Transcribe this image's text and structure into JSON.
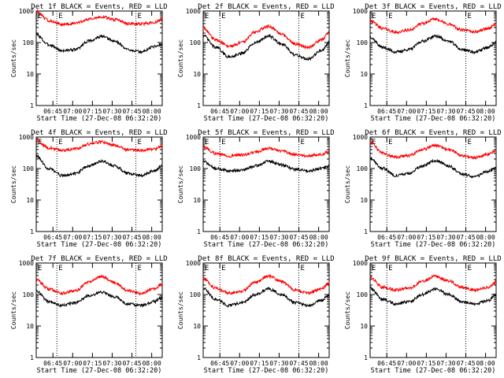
{
  "axis_common": {
    "ylabel": "Counts/sec",
    "xlabel": "Start Time (27-Dec-08 06:32:20)",
    "yticks": [
      "1",
      "10",
      "100",
      "1000"
    ],
    "xticks": [
      "06:45",
      "07:00",
      "07:15",
      "07:30",
      "07:45",
      "08:00"
    ],
    "marker": "E",
    "colors": {
      "events": "#000000",
      "lld": "#ff0000"
    }
  },
  "chart_data": [
    {
      "type": "line",
      "title": "Det 1f BLACK = Events, RED = LLD",
      "yscale": "log",
      "ylim": [
        1,
        1000
      ],
      "xlim": [
        "06:32:20",
        "08:08"
      ],
      "event_lines": [
        "06:48",
        "07:48"
      ],
      "series": [
        {
          "name": "BLACK = Events",
          "color": "#000000",
          "x": [
            "06:32",
            "06:42",
            "06:52",
            "07:02",
            "07:12",
            "07:22",
            "07:32",
            "07:42",
            "07:52",
            "08:02",
            "08:08"
          ],
          "values": [
            180,
            85,
            55,
            60,
            110,
            155,
            110,
            60,
            50,
            75,
            90
          ]
        },
        {
          "name": "RED = LLD",
          "color": "#ff0000",
          "x": [
            "06:32",
            "06:42",
            "06:52",
            "07:02",
            "07:12",
            "07:22",
            "07:32",
            "07:42",
            "07:52",
            "08:02",
            "08:08"
          ],
          "values": [
            1000,
            500,
            380,
            400,
            550,
            650,
            530,
            400,
            390,
            430,
            550
          ]
        }
      ]
    },
    {
      "type": "line",
      "title": "Det 2f BLACK = Events, RED = LLD",
      "yscale": "log",
      "ylim": [
        1,
        1000
      ],
      "xlim": [
        "06:32:20",
        "08:08"
      ],
      "event_lines": [
        "06:45",
        "07:45"
      ],
      "series": [
        {
          "name": "BLACK = Events",
          "color": "#000000",
          "x": [
            "06:32",
            "06:42",
            "06:52",
            "07:02",
            "07:12",
            "07:22",
            "07:32",
            "07:42",
            "07:52",
            "08:02",
            "08:08"
          ],
          "values": [
            170,
            70,
            35,
            45,
            100,
            160,
            90,
            40,
            30,
            55,
            100
          ]
        },
        {
          "name": "RED = LLD",
          "color": "#ff0000",
          "x": [
            "06:32",
            "06:42",
            "06:52",
            "07:02",
            "07:12",
            "07:22",
            "07:32",
            "07:42",
            "07:52",
            "08:02",
            "08:08"
          ],
          "values": [
            300,
            120,
            75,
            100,
            220,
            330,
            190,
            90,
            70,
            120,
            210
          ]
        }
      ]
    },
    {
      "type": "line",
      "title": "Det 3f BLACK = Events, RED = LLD",
      "yscale": "log",
      "ylim": [
        1,
        1000
      ],
      "xlim": [
        "06:32:20",
        "08:08"
      ],
      "event_lines": [
        "06:45",
        "07:45"
      ],
      "series": [
        {
          "name": "BLACK = Events",
          "color": "#000000",
          "x": [
            "06:32",
            "06:42",
            "06:52",
            "07:02",
            "07:12",
            "07:22",
            "07:32",
            "07:42",
            "07:52",
            "08:02",
            "08:08"
          ],
          "values": [
            150,
            70,
            50,
            60,
            110,
            160,
            110,
            60,
            50,
            70,
            100
          ]
        },
        {
          "name": "RED = LLD",
          "color": "#ff0000",
          "x": [
            "06:32",
            "06:42",
            "06:52",
            "07:02",
            "07:12",
            "07:22",
            "07:32",
            "07:42",
            "07:52",
            "08:02",
            "08:08"
          ],
          "values": [
            500,
            280,
            210,
            250,
            400,
            560,
            380,
            250,
            220,
            280,
            380
          ]
        }
      ]
    },
    {
      "type": "line",
      "title": "Det 4f BLACK = Events, RED = LLD",
      "yscale": "log",
      "ylim": [
        1,
        1000
      ],
      "xlim": [
        "06:32:20",
        "08:08"
      ],
      "event_lines": [
        "06:48",
        "07:48"
      ],
      "series": [
        {
          "name": "BLACK = Events",
          "color": "#000000",
          "x": [
            "06:32",
            "06:42",
            "06:52",
            "07:02",
            "07:12",
            "07:22",
            "07:32",
            "07:42",
            "07:52",
            "08:02",
            "08:08"
          ],
          "values": [
            250,
            100,
            60,
            70,
            120,
            170,
            120,
            70,
            60,
            85,
            120
          ]
        },
        {
          "name": "RED = LLD",
          "color": "#ff0000",
          "x": [
            "06:32",
            "06:42",
            "06:52",
            "07:02",
            "07:12",
            "07:22",
            "07:32",
            "07:42",
            "07:52",
            "08:02",
            "08:08"
          ],
          "values": [
            800,
            450,
            380,
            420,
            600,
            700,
            550,
            400,
            380,
            420,
            520
          ]
        }
      ]
    },
    {
      "type": "line",
      "title": "Det 5f BLACK = Events, RED = LLD",
      "yscale": "log",
      "ylim": [
        1,
        1000
      ],
      "xlim": [
        "06:32:20",
        "08:08"
      ],
      "event_lines": [
        "06:45",
        "07:45"
      ],
      "series": [
        {
          "name": "BLACK = Events",
          "color": "#000000",
          "x": [
            "06:32",
            "06:42",
            "06:52",
            "07:02",
            "07:12",
            "07:22",
            "07:32",
            "07:42",
            "07:52",
            "08:02",
            "08:08"
          ],
          "values": [
            170,
            100,
            85,
            90,
            120,
            170,
            130,
            95,
            85,
            100,
            120
          ]
        },
        {
          "name": "RED = LLD",
          "color": "#ff0000",
          "x": [
            "06:32",
            "06:42",
            "06:52",
            "07:02",
            "07:12",
            "07:22",
            "07:32",
            "07:42",
            "07:52",
            "08:02",
            "08:08"
          ],
          "values": [
            500,
            300,
            250,
            270,
            330,
            440,
            360,
            280,
            250,
            280,
            350
          ]
        }
      ]
    },
    {
      "type": "line",
      "title": "Det 6f BLACK = Events, RED = LLD",
      "yscale": "log",
      "ylim": [
        1,
        1000
      ],
      "xlim": [
        "06:32:20",
        "08:08"
      ],
      "event_lines": [
        "06:45",
        "07:45"
      ],
      "series": [
        {
          "name": "BLACK = Events",
          "color": "#000000",
          "x": [
            "06:32",
            "06:42",
            "06:52",
            "07:02",
            "07:12",
            "07:22",
            "07:32",
            "07:42",
            "07:52",
            "08:02",
            "08:08"
          ],
          "values": [
            220,
            100,
            60,
            70,
            120,
            180,
            120,
            65,
            55,
            80,
            110
          ]
        },
        {
          "name": "RED = LLD",
          "color": "#ff0000",
          "x": [
            "06:32",
            "06:42",
            "06:52",
            "07:02",
            "07:12",
            "07:22",
            "07:32",
            "07:42",
            "07:52",
            "08:02",
            "08:08"
          ],
          "values": [
            700,
            300,
            230,
            260,
            400,
            550,
            400,
            260,
            220,
            280,
            380
          ]
        }
      ]
    },
    {
      "type": "line",
      "title": "Det 7f BLACK = Events, RED = LLD",
      "yscale": "log",
      "ylim": [
        1,
        1000
      ],
      "xlim": [
        "06:32:20",
        "08:08"
      ],
      "event_lines": [
        "06:48",
        "07:48"
      ],
      "series": [
        {
          "name": "BLACK = Events",
          "color": "#000000",
          "x": [
            "06:32",
            "06:42",
            "06:52",
            "07:02",
            "07:12",
            "07:22",
            "07:32",
            "07:42",
            "07:52",
            "08:02",
            "08:08"
          ],
          "values": [
            130,
            60,
            45,
            55,
            90,
            120,
            85,
            50,
            45,
            60,
            80
          ]
        },
        {
          "name": "RED = LLD",
          "color": "#ff0000",
          "x": [
            "06:32",
            "06:42",
            "06:52",
            "07:02",
            "07:12",
            "07:22",
            "07:32",
            "07:42",
            "07:52",
            "08:02",
            "08:08"
          ],
          "values": [
            300,
            150,
            110,
            130,
            250,
            380,
            240,
            130,
            110,
            150,
            210
          ]
        }
      ]
    },
    {
      "type": "line",
      "title": "Det 8f BLACK = Events, RED = LLD",
      "yscale": "log",
      "ylim": [
        1,
        1000
      ],
      "xlim": [
        "06:32:20",
        "08:08"
      ],
      "event_lines": [
        "06:45",
        "07:45"
      ],
      "series": [
        {
          "name": "BLACK = Events",
          "color": "#000000",
          "x": [
            "06:32",
            "06:42",
            "06:52",
            "07:02",
            "07:12",
            "07:22",
            "07:32",
            "07:42",
            "07:52",
            "08:02",
            "08:08"
          ],
          "values": [
            160,
            70,
            45,
            55,
            100,
            150,
            100,
            55,
            45,
            65,
            95
          ]
        },
        {
          "name": "RED = LLD",
          "color": "#ff0000",
          "x": [
            "06:32",
            "06:42",
            "06:52",
            "07:02",
            "07:12",
            "07:22",
            "07:32",
            "07:42",
            "07:52",
            "08:02",
            "08:08"
          ],
          "values": [
            330,
            160,
            110,
            130,
            250,
            380,
            260,
            140,
            110,
            150,
            230
          ]
        }
      ]
    },
    {
      "type": "line",
      "title": "Det 9f BLACK = Events, RED = LLD",
      "yscale": "log",
      "ylim": [
        1,
        1000
      ],
      "xlim": [
        "06:32:20",
        "08:08"
      ],
      "event_lines": [
        "06:45",
        "07:45"
      ],
      "series": [
        {
          "name": "BLACK = Events",
          "color": "#000000",
          "x": [
            "06:32",
            "06:42",
            "06:52",
            "07:02",
            "07:12",
            "07:22",
            "07:32",
            "07:42",
            "07:52",
            "08:02",
            "08:08"
          ],
          "values": [
            160,
            70,
            50,
            60,
            100,
            150,
            100,
            60,
            50,
            65,
            100
          ]
        },
        {
          "name": "RED = LLD",
          "color": "#ff0000",
          "x": [
            "06:32",
            "06:42",
            "06:52",
            "07:02",
            "07:12",
            "07:22",
            "07:32",
            "07:42",
            "07:52",
            "08:02",
            "08:08"
          ],
          "values": [
            350,
            170,
            140,
            160,
            260,
            380,
            270,
            170,
            140,
            170,
            250
          ]
        }
      ]
    }
  ]
}
